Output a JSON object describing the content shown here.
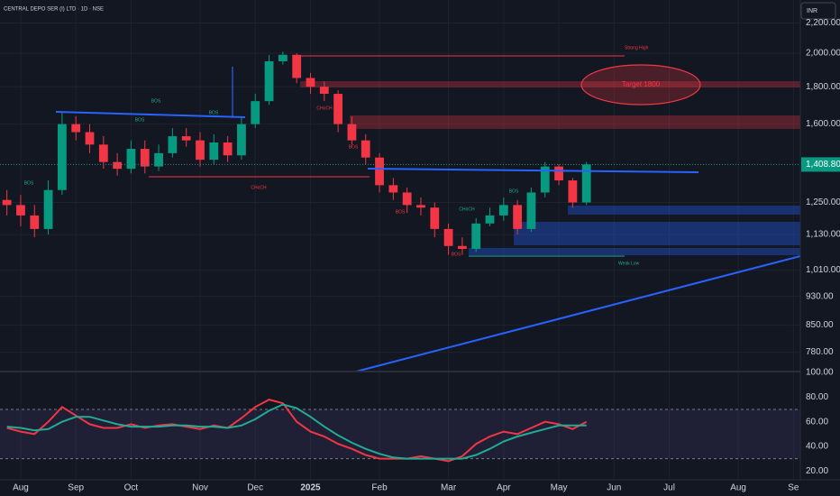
{
  "chart_data": {
    "type": "candlestick",
    "title": "CENTRAL DEPO SER (I) LTD · 1D · NSE",
    "currency": "INR",
    "log_scale": true,
    "grid": true,
    "up_color": "#089981",
    "down_color": "#f23645",
    "categories": [
      null,
      "Aug",
      null,
      null,
      null,
      "Sep",
      null,
      null,
      null,
      "Oct",
      null,
      null,
      null,
      null,
      "Nov",
      null,
      null,
      null,
      "Dec",
      null,
      null,
      null,
      "2025",
      null,
      null,
      null,
      null,
      "Feb",
      null,
      null,
      null,
      null,
      "Mar",
      null,
      null,
      null,
      "Apr",
      null,
      null,
      null,
      "May",
      null,
      null,
      null,
      "Jun",
      null,
      null,
      null,
      "Jul",
      null,
      null,
      null,
      null,
      "Aug",
      null,
      null,
      null,
      "Se"
    ],
    "open": [
      1260,
      1240,
      1200,
      1150,
      1300,
      1600,
      1560,
      1500,
      1420,
      1390,
      1480,
      1400,
      1460,
      1540,
      1520,
      1430,
      1510,
      1450,
      1600,
      1720,
      1950,
      1990,
      1850,
      1800,
      1760,
      1600,
      1520,
      1440,
      1320,
      1290,
      1240,
      1230,
      1150,
      1090,
      1080,
      1170,
      1200,
      1240,
      1150,
      1290,
      1400,
      1340,
      1250,
      null,
      null,
      null,
      null,
      null,
      null,
      null,
      null,
      null,
      null,
      null,
      null,
      null,
      null,
      null
    ],
    "high": [
      1300,
      1280,
      1240,
      1340,
      1660,
      1640,
      1600,
      1540,
      1460,
      1520,
      1520,
      1500,
      1580,
      1580,
      1560,
      1550,
      1540,
      1640,
      1760,
      1990,
      2010,
      2000,
      1880,
      1830,
      1780,
      1640,
      1550,
      1460,
      1350,
      1310,
      1270,
      1250,
      1170,
      1120,
      1190,
      1230,
      1270,
      1260,
      1310,
      1420,
      1410,
      1350,
      1420,
      null,
      null,
      null,
      null,
      null,
      null,
      null,
      null,
      null,
      null,
      null,
      null,
      null,
      null,
      null
    ],
    "low": [
      1200,
      1160,
      1120,
      1130,
      1280,
      1520,
      1460,
      1390,
      1360,
      1370,
      1370,
      1380,
      1440,
      1490,
      1400,
      1410,
      1420,
      1430,
      1580,
      1700,
      1930,
      1820,
      1760,
      1720,
      1560,
      1500,
      1410,
      1290,
      1260,
      1210,
      1200,
      1120,
      1060,
      1060,
      1070,
      1160,
      1180,
      1130,
      1140,
      1270,
      1320,
      1230,
      1240,
      null,
      null,
      null,
      null,
      null,
      null,
      null,
      null,
      null,
      null,
      null,
      null,
      null,
      null,
      null
    ],
    "close": [
      1240,
      1200,
      1150,
      1300,
      1600,
      1560,
      1500,
      1420,
      1390,
      1480,
      1400,
      1460,
      1540,
      1520,
      1430,
      1510,
      1450,
      1600,
      1720,
      1950,
      1990,
      1850,
      1800,
      1760,
      1600,
      1520,
      1440,
      1320,
      1290,
      1240,
      1230,
      1150,
      1090,
      1080,
      1170,
      1200,
      1240,
      1150,
      1290,
      1400,
      1340,
      1250,
      1409,
      null,
      null,
      null,
      null,
      null,
      null,
      null,
      null,
      null,
      null,
      null,
      null,
      null,
      null,
      null
    ],
    "last_price": {
      "value": 1408.8,
      "label": "1,408.80"
    },
    "ylim": [
      734,
      2365
    ],
    "yticks": [
      {
        "value": 2200,
        "label": "2,200.00"
      },
      {
        "value": 2000,
        "label": "2,000.00"
      },
      {
        "value": 1800,
        "label": "1,800.00"
      },
      {
        "value": 1600,
        "label": "1,600.00"
      },
      {
        "value": 1250,
        "label": "1,250.00"
      },
      {
        "value": 1130,
        "label": "1,130.00"
      },
      {
        "value": 1010,
        "label": "1,010.00"
      },
      {
        "value": 930,
        "label": "930.00"
      },
      {
        "value": 850,
        "label": "850.00"
      },
      {
        "value": 780,
        "label": "780.00"
      }
    ],
    "annotations": {
      "target": "Target 1800",
      "strong_high": "Strong High",
      "weak_low": "Weak Low",
      "choch1": "CHoCH",
      "choch2": "CHoCH",
      "choch3": "CHoCH",
      "bos1": "BOS",
      "bos2": "BOS",
      "bos3": "BOS",
      "bos4": "BOS",
      "bos5": "BOS",
      "bos6": "BOS",
      "bos7": "BOS",
      "bos8": "BOS"
    },
    "rsi": {
      "ylim": [
        14,
        100
      ],
      "yticks": [
        {
          "value": 100,
          "label": "100.00"
        },
        {
          "value": 80,
          "label": "80.00"
        },
        {
          "value": 60,
          "label": "60.00"
        },
        {
          "value": 40,
          "label": "40.00"
        },
        {
          "value": 20,
          "label": "20.00"
        }
      ],
      "levels": [
        70,
        30
      ],
      "series": [
        {
          "color": "#f23645",
          "values": [
            55,
            52,
            50,
            60,
            72,
            65,
            58,
            55,
            55,
            58,
            55,
            57,
            58,
            56,
            54,
            57,
            55,
            63,
            72,
            78,
            75,
            60,
            52,
            48,
            42,
            38,
            33,
            30,
            30,
            30,
            32,
            30,
            28,
            32,
            42,
            48,
            52,
            50,
            55,
            60,
            58,
            54,
            60,
            null,
            null,
            null,
            null,
            null,
            null,
            null,
            null,
            null,
            null,
            null,
            null,
            null,
            null,
            null
          ]
        },
        {
          "color": "#22ab94",
          "values": [
            56,
            55,
            53,
            54,
            60,
            64,
            64,
            61,
            58,
            56,
            56,
            56,
            57,
            57,
            56,
            56,
            55,
            57,
            62,
            69,
            74,
            71,
            64,
            56,
            49,
            43,
            38,
            34,
            31,
            30,
            30,
            30,
            30,
            30,
            33,
            38,
            44,
            48,
            51,
            54,
            57,
            57,
            57,
            null,
            null,
            null,
            null,
            null,
            null,
            null,
            null,
            null,
            null,
            null,
            null,
            null,
            null,
            null
          ]
        }
      ]
    }
  }
}
